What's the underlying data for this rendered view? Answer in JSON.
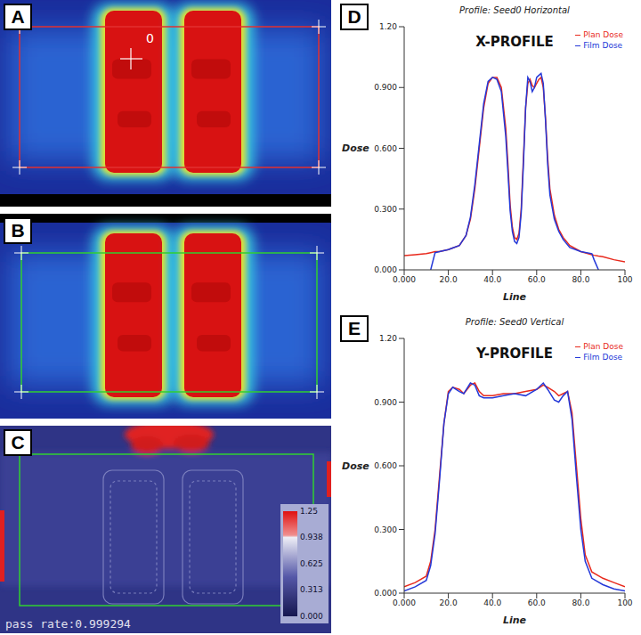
{
  "image_panels": [
    {
      "panel": "A",
      "marker_label": "0"
    },
    {
      "panel": "B"
    },
    {
      "panel": "C",
      "colorbar": {
        "range": [
          0,
          1.25
        ],
        "ticks": [
          1.25,
          0.938,
          0.625,
          0.313,
          {
            "value": 0,
            "label": "0.000"
          }
        ]
      },
      "caption": "pass rate:0.999294"
    }
  ],
  "chart_data": [
    {
      "panel": "D",
      "type": "line",
      "title": "Profile: Seed0 Horizontal",
      "subtitle": "X-PROFILE",
      "x_label": "Line",
      "y_label": "Dose",
      "x": [
        0,
        5,
        10,
        12,
        14,
        16,
        20,
        25,
        28,
        30,
        32,
        34,
        36,
        38,
        40,
        42,
        44,
        46,
        47,
        48,
        49,
        50,
        51,
        52,
        53,
        54,
        55,
        56,
        57,
        58,
        59,
        60,
        61,
        62,
        63,
        64,
        65,
        66,
        68,
        70,
        72,
        75,
        80,
        85,
        86,
        88,
        90,
        95,
        100
      ],
      "series": [
        {
          "name": "Plan Dose",
          "color": "#e8291c",
          "values": [
            0.07,
            0.075,
            0.08,
            0.085,
            0.09,
            0.09,
            0.1,
            0.12,
            0.17,
            0.25,
            0.4,
            0.6,
            0.8,
            0.92,
            0.95,
            0.95,
            0.9,
            0.7,
            0.52,
            0.32,
            0.21,
            0.16,
            0.15,
            0.18,
            0.3,
            0.55,
            0.8,
            0.92,
            0.94,
            0.91,
            0.9,
            0.92,
            0.94,
            0.95,
            0.9,
            0.75,
            0.55,
            0.4,
            0.27,
            0.2,
            0.16,
            0.12,
            0.09,
            0.075,
            0.072,
            0.068,
            0.065,
            0.05,
            0.04
          ]
        },
        {
          "name": "Film Dose",
          "color": "#2438d8",
          "values": [
            null,
            null,
            null,
            0,
            0.085,
            0.09,
            0.1,
            0.12,
            0.17,
            0.26,
            0.42,
            0.62,
            0.82,
            0.93,
            0.95,
            0.94,
            0.88,
            0.66,
            0.48,
            0.29,
            0.19,
            0.14,
            0.13,
            0.16,
            0.28,
            0.52,
            0.8,
            0.95,
            0.93,
            0.88,
            0.9,
            0.95,
            0.96,
            0.97,
            0.92,
            0.74,
            0.52,
            0.37,
            0.25,
            0.19,
            0.15,
            0.11,
            0.09,
            0.08,
            0.05,
            0,
            null,
            null,
            null
          ]
        }
      ],
      "xlim": [
        0,
        100
      ],
      "ylim": [
        0,
        1.2
      ],
      "xticks": [
        {
          "value": 0,
          "label": "0.000"
        },
        {
          "value": 20,
          "label": "20.0"
        },
        {
          "value": 40,
          "label": "40.0"
        },
        {
          "value": 60,
          "label": "60.0"
        },
        {
          "value": 80,
          "label": "80.0"
        },
        100
      ],
      "yticks": [
        {
          "value": 0,
          "label": "0.000"
        },
        {
          "value": 0.3,
          "label": "0.300"
        },
        {
          "value": 0.6,
          "label": "0.600"
        },
        {
          "value": 0.9,
          "label": "0.900"
        },
        {
          "value": 1.2,
          "label": "1.20"
        }
      ],
      "grid": false,
      "legend": "upper right"
    },
    {
      "panel": "E",
      "type": "line",
      "title": "Profile: Seed0 Vertical",
      "subtitle": "Y-PROFILE",
      "x_label": "Line",
      "y_label": "Dose",
      "x": [
        0,
        5,
        10,
        12,
        14,
        16,
        18,
        20,
        22,
        25,
        27,
        30,
        32,
        34,
        36,
        40,
        45,
        50,
        55,
        60,
        63,
        65,
        68,
        70,
        72,
        74,
        76,
        78,
        80,
        82,
        85,
        90,
        95,
        100
      ],
      "series": [
        {
          "name": "Plan Dose",
          "color": "#e8291c",
          "values": [
            0.03,
            0.05,
            0.08,
            0.15,
            0.3,
            0.55,
            0.8,
            0.95,
            0.97,
            0.96,
            0.94,
            0.98,
            0.99,
            0.95,
            0.93,
            0.93,
            0.94,
            0.94,
            0.95,
            0.96,
            0.98,
            0.97,
            0.95,
            0.93,
            0.94,
            0.95,
            0.85,
            0.6,
            0.35,
            0.18,
            0.1,
            0.07,
            0.05,
            0.03
          ]
        },
        {
          "name": "Film Dose",
          "color": "#2438d8",
          "values": [
            0.01,
            0.03,
            0.06,
            0.13,
            0.28,
            0.53,
            0.8,
            0.94,
            0.97,
            0.95,
            0.94,
            0.99,
            0.98,
            0.93,
            0.92,
            0.92,
            0.93,
            0.94,
            0.93,
            0.96,
            0.99,
            0.96,
            0.91,
            0.9,
            0.93,
            0.95,
            0.82,
            0.55,
            0.3,
            0.15,
            0.07,
            0.04,
            0.02,
            0.01
          ]
        }
      ],
      "xlim": [
        0,
        100
      ],
      "ylim": [
        0,
        1.2
      ],
      "xticks": [
        {
          "value": 0,
          "label": "0.000"
        },
        {
          "value": 20,
          "label": "20.0"
        },
        {
          "value": 40,
          "label": "40.0"
        },
        {
          "value": 60,
          "label": "60.0"
        },
        {
          "value": 80,
          "label": "80.0"
        },
        100
      ],
      "yticks": [
        {
          "value": 0,
          "label": "0.000"
        },
        {
          "value": 0.3,
          "label": "0.300"
        },
        {
          "value": 0.6,
          "label": "0.600"
        },
        {
          "value": 0.9,
          "label": "0.900"
        },
        {
          "value": 1.2,
          "label": "1.20"
        }
      ],
      "grid": false,
      "legend": "upper right"
    }
  ]
}
